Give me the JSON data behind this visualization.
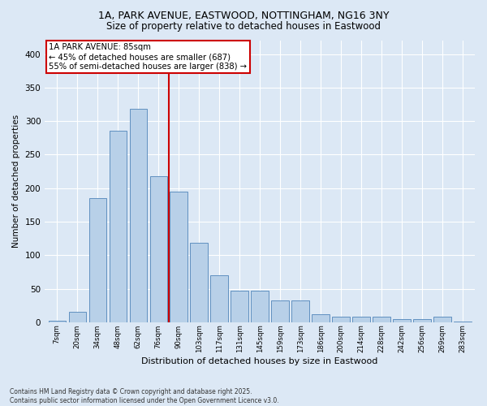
{
  "title_line1": "1A, PARK AVENUE, EASTWOOD, NOTTINGHAM, NG16 3NY",
  "title_line2": "Size of property relative to detached houses in Eastwood",
  "xlabel": "Distribution of detached houses by size in Eastwood",
  "ylabel": "Number of detached properties",
  "bar_labels": [
    "7sqm",
    "20sqm",
    "34sqm",
    "48sqm",
    "62sqm",
    "76sqm",
    "90sqm",
    "103sqm",
    "117sqm",
    "131sqm",
    "145sqm",
    "159sqm",
    "173sqm",
    "186sqm",
    "200sqm",
    "214sqm",
    "228sqm",
    "242sqm",
    "256sqm",
    "269sqm",
    "283sqm"
  ],
  "bar_values": [
    2,
    15,
    185,
    285,
    318,
    218,
    195,
    118,
    70,
    47,
    47,
    33,
    33,
    12,
    8,
    8,
    8,
    5,
    5,
    8,
    1
  ],
  "bar_color": "#b8d0e8",
  "bar_edge_color": "#6090c0",
  "annotation_text": "1A PARK AVENUE: 85sqm\n← 45% of detached houses are smaller (687)\n55% of semi-detached houses are larger (838) →",
  "vline_x": 5.5,
  "vline_color": "#cc0000",
  "annotation_box_facecolor": "#ffffff",
  "annotation_box_edgecolor": "#cc0000",
  "ylim": [
    0,
    420
  ],
  "yticks": [
    0,
    50,
    100,
    150,
    200,
    250,
    300,
    350,
    400
  ],
  "footer": "Contains HM Land Registry data © Crown copyright and database right 2025.\nContains public sector information licensed under the Open Government Licence v3.0.",
  "fig_facecolor": "#dce8f5",
  "ax_facecolor": "#dce8f5",
  "grid_color": "#ffffff",
  "title_color": "#000000"
}
